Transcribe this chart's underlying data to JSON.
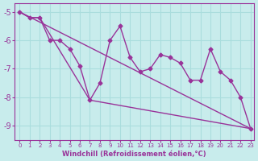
{
  "xlabel": "Windchill (Refroidissement éolien,°C)",
  "background_color": "#c8ecec",
  "line_color": "#993399",
  "grid_color": "#aadddd",
  "axis_color": "#993399",
  "text_color": "#993399",
  "xlim": [
    -0.5,
    23.3
  ],
  "ylim": [
    -9.5,
    -4.7
  ],
  "yticks": [
    -9,
    -8,
    -7,
    -6,
    -5
  ],
  "xticks": [
    0,
    1,
    2,
    3,
    4,
    5,
    6,
    7,
    8,
    9,
    10,
    11,
    12,
    13,
    14,
    15,
    16,
    17,
    18,
    19,
    20,
    21,
    22,
    23
  ],
  "data_x": [
    0,
    1,
    2,
    3,
    4,
    5,
    6,
    7,
    8,
    9,
    10,
    11,
    12,
    13,
    14,
    15,
    16,
    17,
    18,
    19,
    20,
    21,
    22,
    23
  ],
  "data_y": [
    -5.0,
    -5.2,
    -5.2,
    -6.0,
    -6.0,
    -6.3,
    -6.9,
    -8.1,
    -7.5,
    -6.0,
    -5.5,
    -6.6,
    -7.1,
    -7.0,
    -6.5,
    -6.6,
    -6.8,
    -7.4,
    -7.4,
    -6.3,
    -7.1,
    -7.4,
    -8.0,
    -9.1
  ],
  "upper_line_x": [
    0,
    23
  ],
  "upper_line_y": [
    -5.0,
    -9.1
  ],
  "lower_line_x": [
    0,
    1,
    2,
    7,
    23
  ],
  "lower_line_y": [
    -5.0,
    -5.2,
    -5.2,
    -8.1,
    -9.1
  ]
}
